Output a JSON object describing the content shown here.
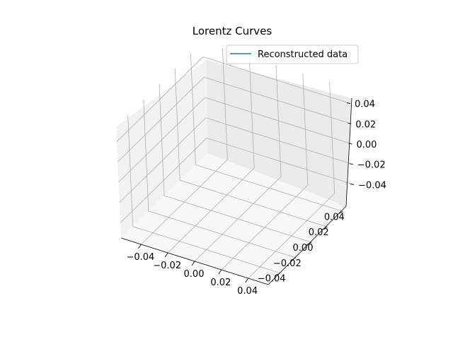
{
  "chart_data": {
    "type": "line",
    "projection": "3d",
    "title": "Lorentz Curves",
    "xlabel": "",
    "ylabel": "",
    "zlabel": "",
    "xlim": [
      -0.055,
      0.055
    ],
    "ylim": [
      -0.055,
      0.055
    ],
    "zlim": [
      -0.055,
      0.055
    ],
    "x_ticks": [
      "−0.04",
      "−0.02",
      "0.00",
      "0.02",
      "0.04"
    ],
    "y_ticks": [
      "−0.04",
      "−0.02",
      "0.00",
      "0.02",
      "0.04"
    ],
    "z_ticks": [
      "−0.04",
      "−0.02",
      "0.00",
      "0.02",
      "0.04"
    ],
    "grid": true,
    "legend_position": "top-right",
    "series": [
      {
        "name": "Reconstructed data",
        "color": "#1f77b4",
        "x": [],
        "y": [],
        "z": []
      }
    ],
    "pane_colors": {
      "left": "#f2f2f2",
      "right": "#ebebeb",
      "floor": "#f7f7f7",
      "grid": "#b0b0b0"
    }
  }
}
